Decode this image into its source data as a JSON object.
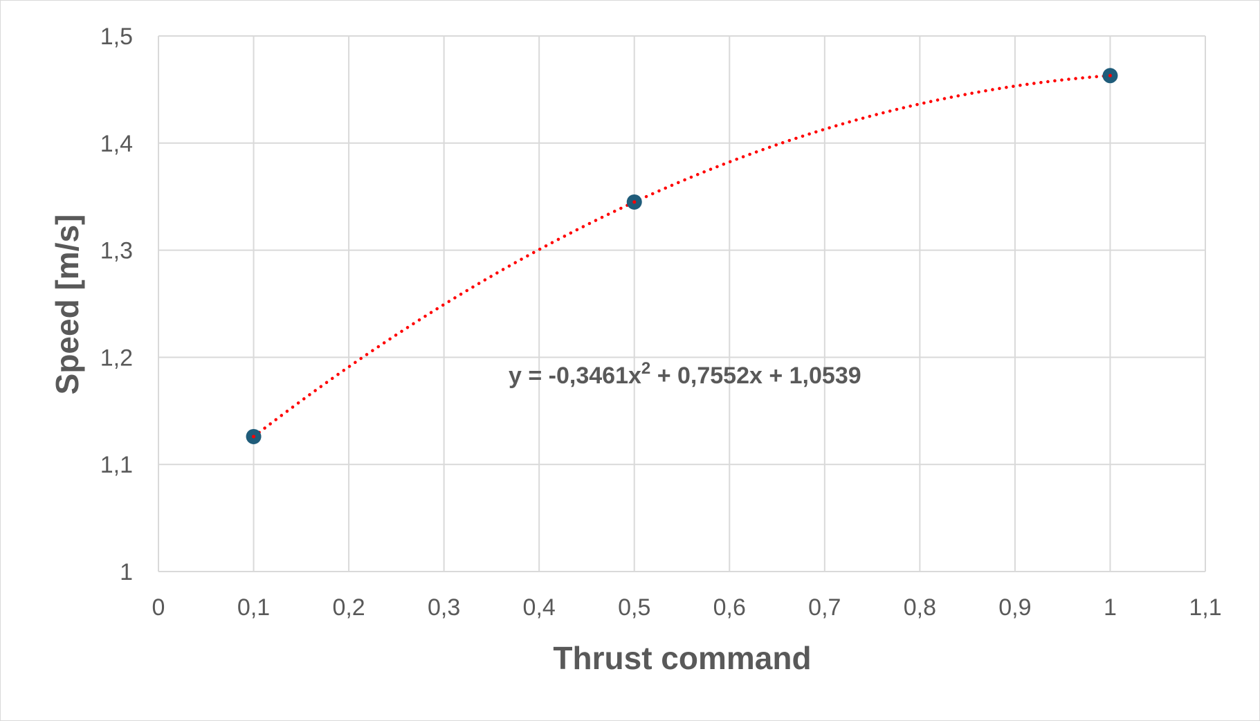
{
  "chart_data": {
    "type": "scatter",
    "xlabel": "Thrust command",
    "ylabel": "Speed [m/s]",
    "xlim": [
      0,
      1.1
    ],
    "ylim": [
      1,
      1.5
    ],
    "x_ticks": [
      "0",
      "0,1",
      "0,2",
      "0,3",
      "0,4",
      "0,5",
      "0,6",
      "0,7",
      "0,8",
      "0,9",
      "1",
      "1,1"
    ],
    "y_ticks": [
      "1",
      "1,1",
      "1,2",
      "1,3",
      "1,4",
      "1,5"
    ],
    "grid": true,
    "series": [
      {
        "x": [
          0.1,
          0.5,
          1.0
        ],
        "y": [
          1.126,
          1.345,
          1.463
        ],
        "color": "#1f5c7a"
      }
    ],
    "trendline": {
      "type": "polynomial-2",
      "coefficients": [
        -0.3461,
        0.7552,
        1.0539
      ],
      "x_range": [
        0.1,
        1.0
      ],
      "color": "#ff0000",
      "style": "dotted",
      "equation_prefix": "y = -0,3461x",
      "equation_exponent": "2",
      "equation_suffix": " + 0,7552x + 1,0539"
    }
  }
}
